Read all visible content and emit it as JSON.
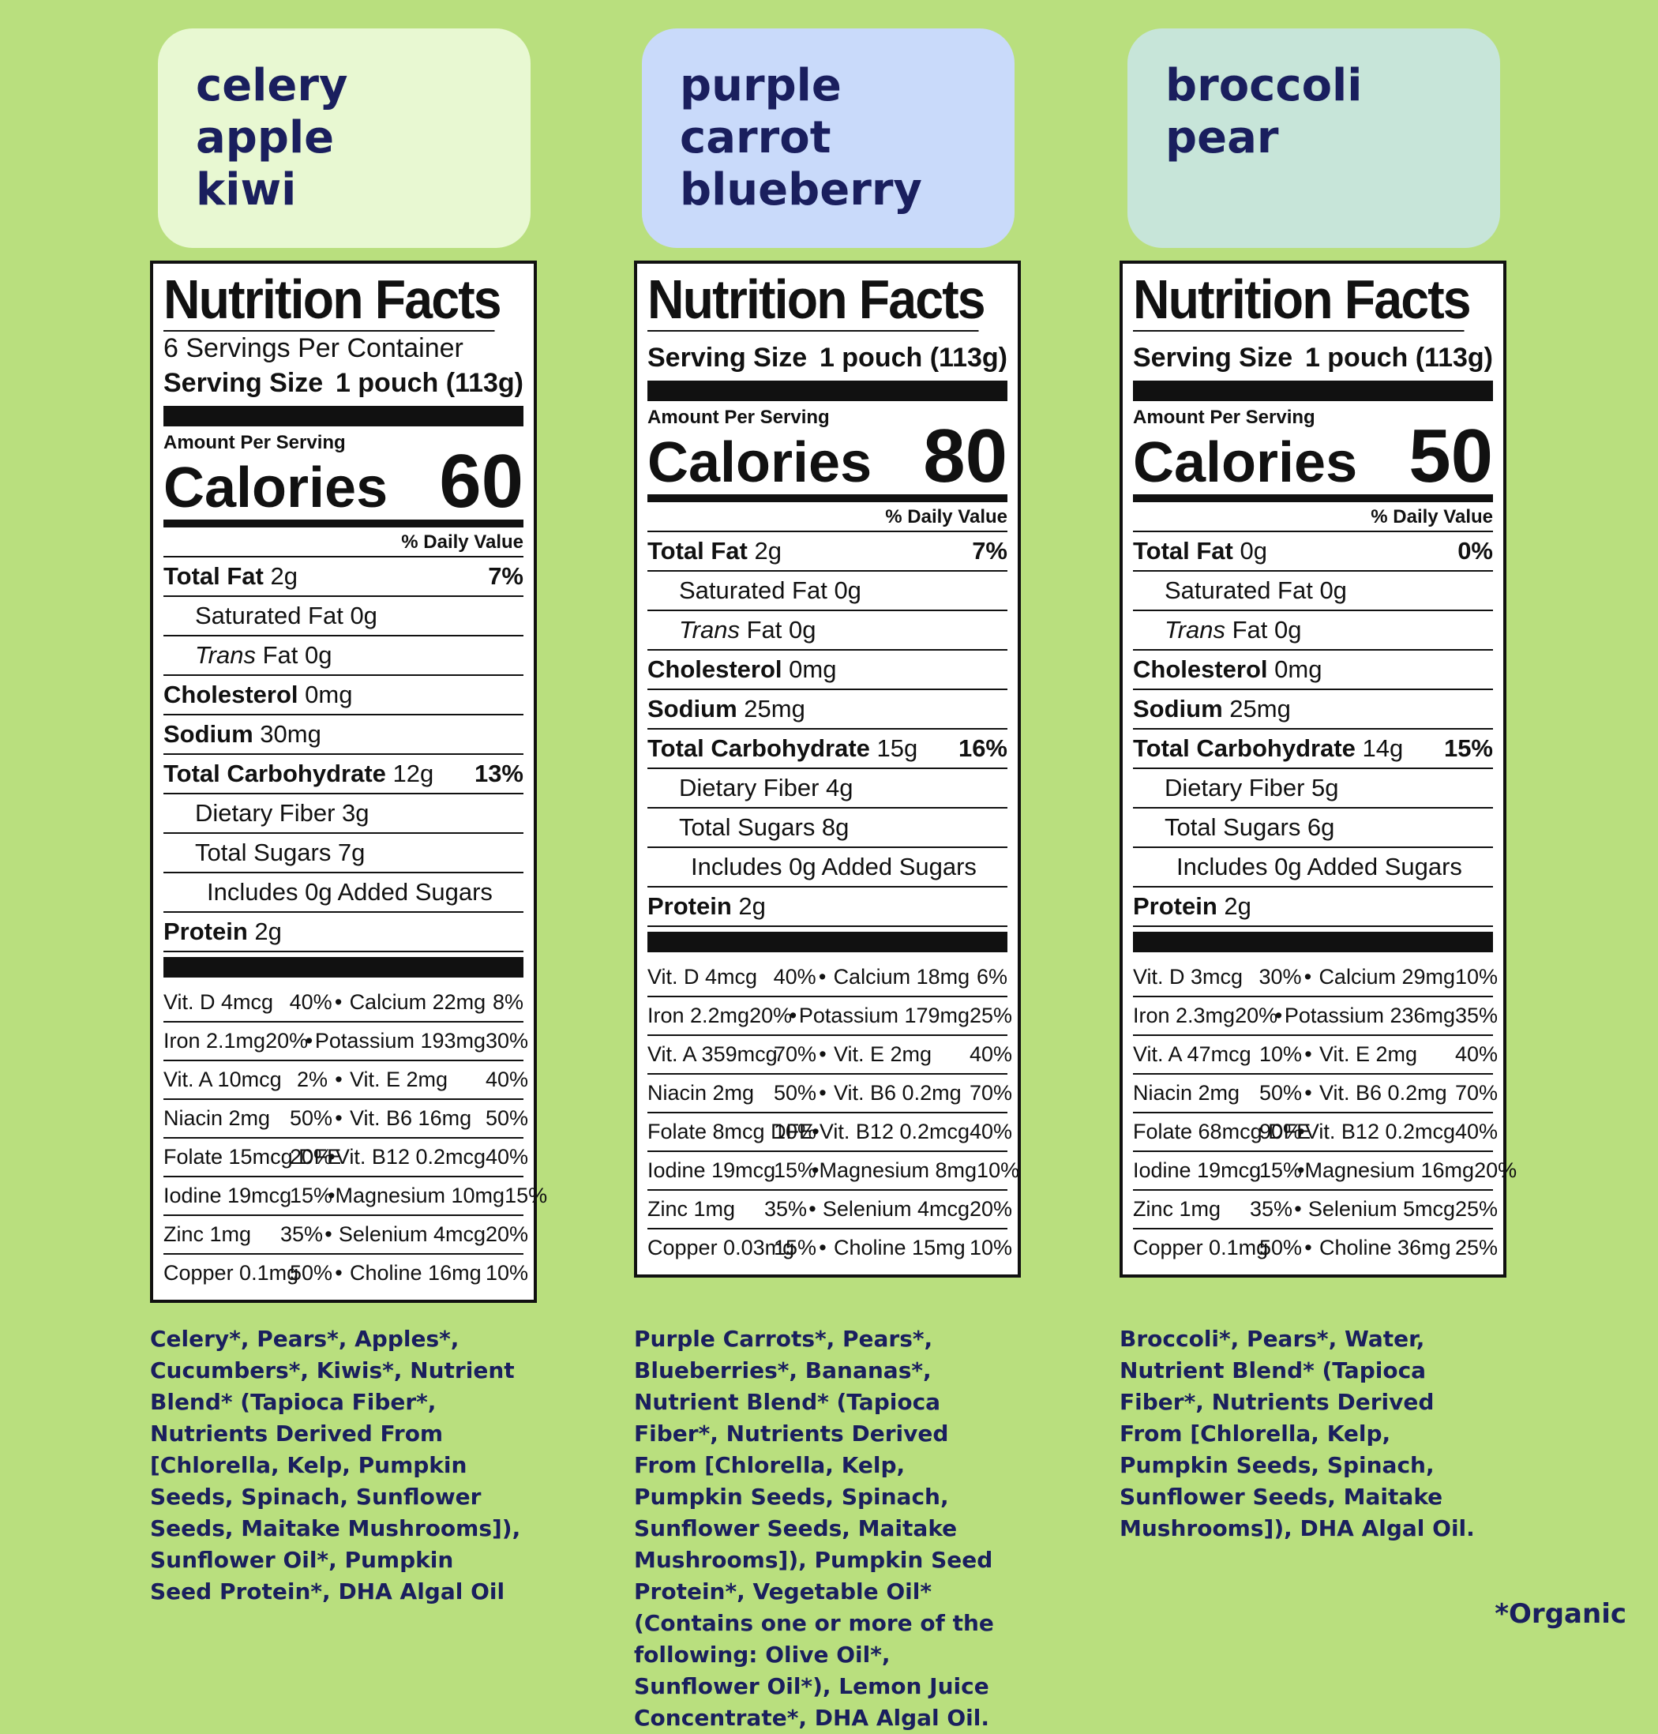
{
  "products": [
    {
      "name_lines": [
        "celery",
        "apple",
        "kiwi"
      ],
      "servings": "6 Servings Per Container",
      "serving_size_label": "Serving Size",
      "serving_size": "1 pouch (113g)",
      "amount_per_serving": "Amount Per Serving",
      "calories_label": "Calories",
      "calories": "60",
      "daily_value": "% Daily Value",
      "nutrients": [
        {
          "bold": "Total Fat",
          "amt": "2g",
          "pct": "7%",
          "indent": 0
        },
        {
          "bold": "",
          "amt": "Saturated Fat 0g",
          "pct": "",
          "indent": 1
        },
        {
          "bold": "",
          "italic": "Trans",
          "amt": "Fat 0g",
          "pct": "",
          "indent": 1
        },
        {
          "bold": "Cholesterol",
          "amt": "0mg",
          "pct": "",
          "indent": 0
        },
        {
          "bold": "Sodium",
          "amt": "30mg",
          "pct": "",
          "indent": 0
        },
        {
          "bold": "Total Carbohydrate",
          "amt": "12g",
          "pct": "13%",
          "indent": 0
        },
        {
          "bold": "",
          "amt": "Dietary Fiber 3g",
          "pct": "",
          "indent": 1
        },
        {
          "bold": "",
          "amt": "Total Sugars 7g",
          "pct": "",
          "indent": 1
        },
        {
          "bold": "",
          "amt": "Includes 0g Added Sugars",
          "pct": "",
          "indent": 2
        },
        {
          "bold": "Protein",
          "amt": "2g",
          "pct": "",
          "indent": 0
        }
      ],
      "vitamins": [
        [
          "Vit. D 4mcg",
          "40%",
          "Calcium 22mg",
          "8%"
        ],
        [
          "Iron 2.1mg",
          "20%",
          "Potassium 193mg",
          "30%"
        ],
        [
          "Vit. A 10mcg",
          "2%",
          "Vit. E 2mg",
          "40%"
        ],
        [
          "Niacin 2mg",
          "50%",
          "Vit. B6 16mg",
          "50%"
        ],
        [
          "Folate 15mcg DFE",
          "20%",
          "Vit. B12 0.2mcg",
          "40%"
        ],
        [
          "Iodine 19mcg",
          "15%",
          "Magnesium 10mg",
          "15%"
        ],
        [
          "Zinc 1mg",
          "35%",
          "Selenium 4mcg",
          "20%"
        ],
        [
          "Copper 0.1mg",
          "50%",
          "Choline 16mg",
          "10%"
        ]
      ],
      "ingredients": "Celery*, Pears*, Apples*, Cucumbers*, Kiwis*, Nutrient Blend* (Tapioca Fiber*, Nutrients Derived From [Chlorella, Kelp, Pumpkin Seeds, Spinach, Sunflower Seeds, Maitake Mushrooms]), Sunflower Oil*, Pumpkin Seed Protein*, DHA Algal Oil"
    },
    {
      "name_lines": [
        "purple carrot",
        "blueberry"
      ],
      "servings": "",
      "serving_size_label": "Serving Size",
      "serving_size": "1 pouch (113g)",
      "amount_per_serving": "Amount Per Serving",
      "calories_label": "Calories",
      "calories": "80",
      "daily_value": "% Daily Value",
      "nutrients": [
        {
          "bold": "Total Fat",
          "amt": "2g",
          "pct": "7%",
          "indent": 0
        },
        {
          "bold": "",
          "amt": "Saturated Fat 0g",
          "pct": "",
          "indent": 1
        },
        {
          "bold": "",
          "italic": "Trans",
          "amt": "Fat 0g",
          "pct": "",
          "indent": 1
        },
        {
          "bold": "Cholesterol",
          "amt": "0mg",
          "pct": "",
          "indent": 0
        },
        {
          "bold": "Sodium",
          "amt": "25mg",
          "pct": "",
          "indent": 0
        },
        {
          "bold": "Total Carbohydrate",
          "amt": "15g",
          "pct": "16%",
          "indent": 0
        },
        {
          "bold": "",
          "amt": "Dietary Fiber 4g",
          "pct": "",
          "indent": 1
        },
        {
          "bold": "",
          "amt": "Total Sugars 8g",
          "pct": "",
          "indent": 1
        },
        {
          "bold": "",
          "amt": "Includes 0g Added Sugars",
          "pct": "",
          "indent": 2
        },
        {
          "bold": "Protein",
          "amt": "2g",
          "pct": "",
          "indent": 0
        }
      ],
      "vitamins": [
        [
          "Vit. D 4mcg",
          "40%",
          "Calcium 18mg",
          "6%"
        ],
        [
          "Iron 2.2mg",
          "20%",
          "Potassium 179mg",
          "25%"
        ],
        [
          "Vit. A 359mcg",
          "70%",
          "Vit. E 2mg",
          "40%"
        ],
        [
          "Niacin 2mg",
          "50%",
          "Vit. B6 0.2mg",
          "70%"
        ],
        [
          "Folate 8mcg DFE",
          "10%",
          "Vit. B12 0.2mcg",
          "40%"
        ],
        [
          "Iodine 19mcg",
          "15%",
          "Magnesium 8mg",
          "10%"
        ],
        [
          "Zinc 1mg",
          "35%",
          "Selenium 4mcg",
          "20%"
        ],
        [
          "Copper 0.03mg",
          "15%",
          "Choline 15mg",
          "10%"
        ]
      ],
      "ingredients": "Purple Carrots*, Pears*, Blueberries*, Bananas*, Nutrient Blend* (Tapioca Fiber*, Nutrients Derived From [Chlorella, Kelp, Pumpkin Seeds, Spinach, Sunflower Seeds, Maitake Mushrooms]), Pumpkin Seed Protein*, Vegetable Oil* (Contains one or more of the following: Olive Oil*, Sunflower Oil*), Lemon Juice Concentrate*, DHA Algal Oil."
    },
    {
      "name_lines": [
        "broccoli",
        "pear"
      ],
      "servings": "",
      "serving_size_label": "Serving Size",
      "serving_size": "1 pouch (113g)",
      "amount_per_serving": "Amount Per Serving",
      "calories_label": "Calories",
      "calories": "50",
      "daily_value": "% Daily Value",
      "nutrients": [
        {
          "bold": "Total Fat",
          "amt": "0g",
          "pct": "0%",
          "indent": 0
        },
        {
          "bold": "",
          "amt": "Saturated Fat 0g",
          "pct": "",
          "indent": 1
        },
        {
          "bold": "",
          "italic": "Trans",
          "amt": "Fat 0g",
          "pct": "",
          "indent": 1
        },
        {
          "bold": "Cholesterol",
          "amt": "0mg",
          "pct": "",
          "indent": 0
        },
        {
          "bold": "Sodium",
          "amt": "25mg",
          "pct": "",
          "indent": 0
        },
        {
          "bold": "Total Carbohydrate",
          "amt": "14g",
          "pct": "15%",
          "indent": 0
        },
        {
          "bold": "",
          "amt": "Dietary Fiber 5g",
          "pct": "",
          "indent": 1
        },
        {
          "bold": "",
          "amt": "Total Sugars 6g",
          "pct": "",
          "indent": 1
        },
        {
          "bold": "",
          "amt": "Includes 0g Added Sugars",
          "pct": "",
          "indent": 2
        },
        {
          "bold": "Protein",
          "amt": "2g",
          "pct": "",
          "indent": 0
        }
      ],
      "vitamins": [
        [
          "Vit. D 3mcg",
          "30%",
          "Calcium 29mg",
          "10%"
        ],
        [
          "Iron 2.3mg",
          "20%",
          "Potassium 236mg",
          "35%"
        ],
        [
          "Vit. A 47mcg",
          "10%",
          "Vit. E 2mg",
          "40%"
        ],
        [
          "Niacin 2mg",
          "50%",
          "Vit. B6 0.2mg",
          "70%"
        ],
        [
          "Folate 68mcg DFE",
          "90%",
          "Vit. B12 0.2mcg",
          "40%"
        ],
        [
          "Iodine 19mcg",
          "15%",
          "Magnesium 16mg",
          "20%"
        ],
        [
          "Zinc 1mg",
          "35%",
          "Selenium 5mcg",
          "25%"
        ],
        [
          "Copper 0.1mg",
          "50%",
          "Choline 36mg",
          "25%"
        ]
      ],
      "ingredients": "Broccoli*, Pears*, Water, Nutrient Blend* (Tapioca Fiber*, Nutrients Derived From [Chlorella, Kelp, Pumpkin Seeds, Spinach, Sunflower Seeds, Maitake Mushrooms]), DHA Algal Oil."
    }
  ],
  "label_title": "Nutrition Facts",
  "organic_note": "*Organic"
}
